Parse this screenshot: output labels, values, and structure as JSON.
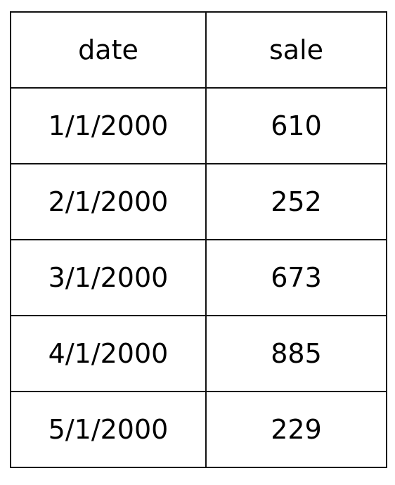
{
  "chart_data": {
    "type": "table",
    "columns": [
      "date",
      "sale"
    ],
    "rows": [
      [
        "1/1/2000",
        "610"
      ],
      [
        "2/1/2000",
        "252"
      ],
      [
        "3/1/2000",
        "673"
      ],
      [
        "4/1/2000",
        "885"
      ],
      [
        "5/1/2000",
        "229"
      ]
    ]
  }
}
